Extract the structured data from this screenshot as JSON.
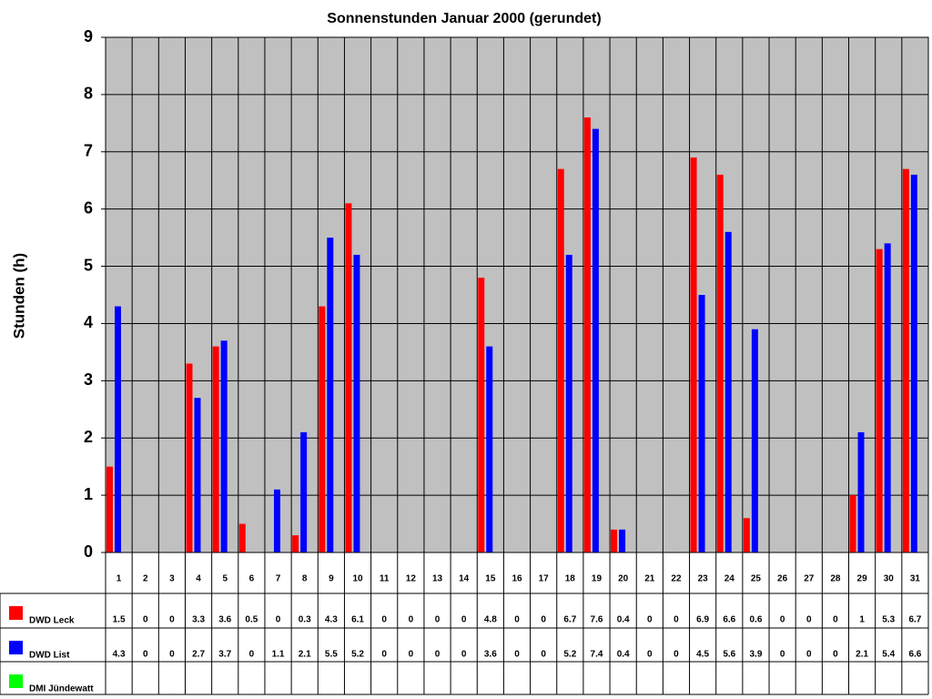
{
  "chart_data": {
    "type": "bar",
    "title": "Sonnenstunden Januar 2000 (gerundet)",
    "y_label": "Stunden (h)",
    "categories": [
      "1",
      "2",
      "3",
      "4",
      "5",
      "6",
      "7",
      "8",
      "9",
      "10",
      "11",
      "12",
      "13",
      "14",
      "15",
      "16",
      "17",
      "18",
      "19",
      "20",
      "21",
      "22",
      "23",
      "24",
      "25",
      "26",
      "27",
      "28",
      "29",
      "30",
      "31"
    ],
    "series": [
      {
        "name": "DWD Leck",
        "color": "#ff0000",
        "values": [
          1.5,
          0,
          0,
          3.3,
          3.6,
          0.5,
          0,
          0.3,
          4.3,
          6.1,
          0,
          0,
          0,
          0,
          4.8,
          0,
          0,
          6.7,
          7.6,
          0.4,
          0,
          0,
          6.9,
          6.6,
          0.6,
          0,
          0,
          0,
          1,
          5.3,
          6.7
        ]
      },
      {
        "name": "DWD List",
        "color": "#0000ff",
        "values": [
          4.3,
          0,
          0,
          2.7,
          3.7,
          0,
          1.1,
          2.1,
          5.5,
          5.2,
          0,
          0,
          0,
          0,
          3.6,
          0,
          0,
          5.2,
          7.4,
          0.4,
          0,
          0,
          4.5,
          5.6,
          3.9,
          0,
          0,
          0,
          2.1,
          5.4,
          6.6
        ]
      },
      {
        "name": "DMI Jündewatt",
        "color": "#00ff00",
        "values": [
          null,
          null,
          null,
          null,
          null,
          null,
          null,
          null,
          null,
          null,
          null,
          null,
          null,
          null,
          null,
          null,
          null,
          null,
          null,
          null,
          null,
          null,
          null,
          null,
          null,
          null,
          null,
          null,
          null,
          null,
          null
        ]
      }
    ],
    "ylim": [
      0,
      9
    ],
    "yticks": [
      0,
      1,
      2,
      3,
      4,
      5,
      6,
      7,
      8,
      9
    ],
    "grid": true,
    "background": "#c0c0c0"
  }
}
